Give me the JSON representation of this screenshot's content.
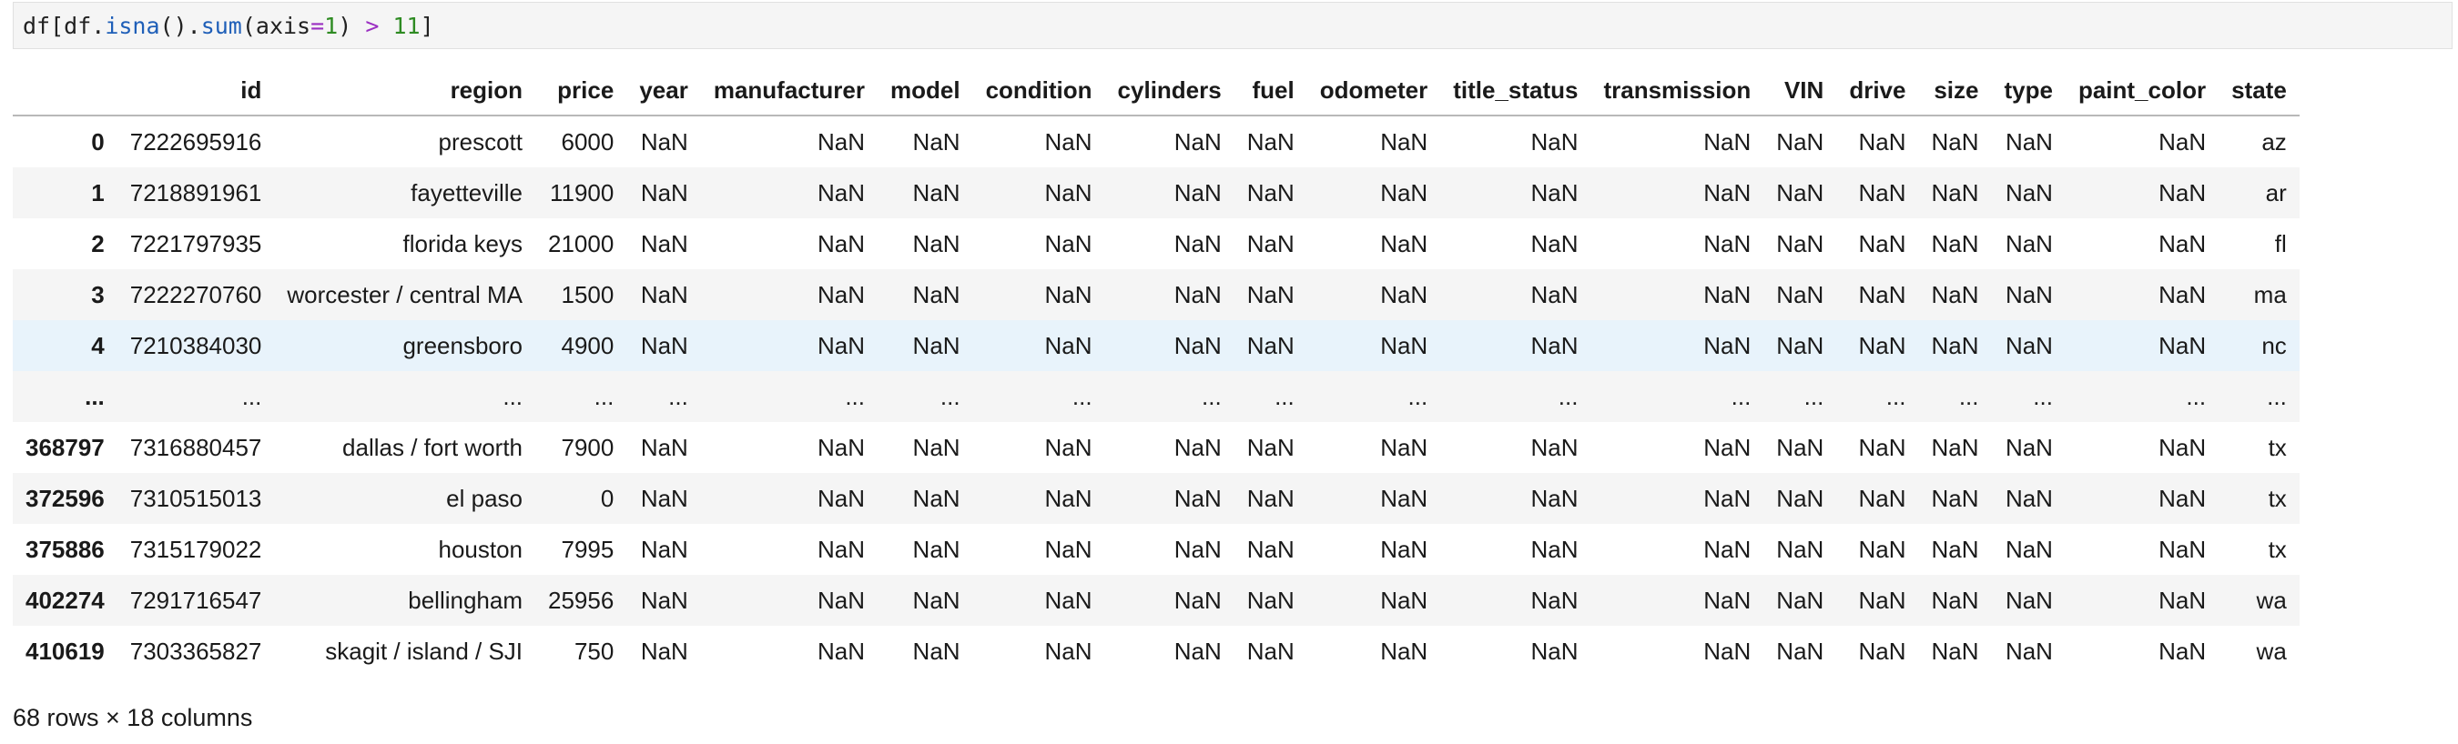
{
  "code_cell": {
    "tokens": [
      {
        "text": "df[df.",
        "cls": ""
      },
      {
        "text": "isna",
        "cls": "tok-fn"
      },
      {
        "text": "().",
        "cls": ""
      },
      {
        "text": "sum",
        "cls": "tok-fn"
      },
      {
        "text": "(axis",
        "cls": ""
      },
      {
        "text": "=",
        "cls": "tok-op"
      },
      {
        "text": "1",
        "cls": "tok-num"
      },
      {
        "text": ") ",
        "cls": ""
      },
      {
        "text": ">",
        "cls": "tok-op"
      },
      {
        "text": " ",
        "cls": ""
      },
      {
        "text": "11",
        "cls": "tok-num"
      },
      {
        "text": "]",
        "cls": ""
      }
    ]
  },
  "table": {
    "columns": [
      "",
      "id",
      "region",
      "price",
      "year",
      "manufacturer",
      "model",
      "condition",
      "cylinders",
      "fuel",
      "odometer",
      "title_status",
      "transmission",
      "VIN",
      "drive",
      "size",
      "type",
      "paint_color",
      "state"
    ],
    "rows": [
      {
        "index": "0",
        "cells": [
          "7222695916",
          "prescott",
          "6000",
          "NaN",
          "NaN",
          "NaN",
          "NaN",
          "NaN",
          "NaN",
          "NaN",
          "NaN",
          "NaN",
          "NaN",
          "NaN",
          "NaN",
          "NaN",
          "NaN",
          "az"
        ]
      },
      {
        "index": "1",
        "cells": [
          "7218891961",
          "fayetteville",
          "11900",
          "NaN",
          "NaN",
          "NaN",
          "NaN",
          "NaN",
          "NaN",
          "NaN",
          "NaN",
          "NaN",
          "NaN",
          "NaN",
          "NaN",
          "NaN",
          "NaN",
          "ar"
        ]
      },
      {
        "index": "2",
        "cells": [
          "7221797935",
          "florida keys",
          "21000",
          "NaN",
          "NaN",
          "NaN",
          "NaN",
          "NaN",
          "NaN",
          "NaN",
          "NaN",
          "NaN",
          "NaN",
          "NaN",
          "NaN",
          "NaN",
          "NaN",
          "fl"
        ]
      },
      {
        "index": "3",
        "cells": [
          "7222270760",
          "worcester / central MA",
          "1500",
          "NaN",
          "NaN",
          "NaN",
          "NaN",
          "NaN",
          "NaN",
          "NaN",
          "NaN",
          "NaN",
          "NaN",
          "NaN",
          "NaN",
          "NaN",
          "NaN",
          "ma"
        ]
      },
      {
        "index": "4",
        "cells": [
          "7210384030",
          "greensboro",
          "4900",
          "NaN",
          "NaN",
          "NaN",
          "NaN",
          "NaN",
          "NaN",
          "NaN",
          "NaN",
          "NaN",
          "NaN",
          "NaN",
          "NaN",
          "NaN",
          "NaN",
          "nc"
        ],
        "hovered": true
      },
      {
        "index": "...",
        "cells": [
          "...",
          "...",
          "...",
          "...",
          "...",
          "...",
          "...",
          "...",
          "...",
          "...",
          "...",
          "...",
          "...",
          "...",
          "...",
          "...",
          "...",
          "..."
        ]
      },
      {
        "index": "368797",
        "cells": [
          "7316880457",
          "dallas / fort worth",
          "7900",
          "NaN",
          "NaN",
          "NaN",
          "NaN",
          "NaN",
          "NaN",
          "NaN",
          "NaN",
          "NaN",
          "NaN",
          "NaN",
          "NaN",
          "NaN",
          "NaN",
          "tx"
        ]
      },
      {
        "index": "372596",
        "cells": [
          "7310515013",
          "el paso",
          "0",
          "NaN",
          "NaN",
          "NaN",
          "NaN",
          "NaN",
          "NaN",
          "NaN",
          "NaN",
          "NaN",
          "NaN",
          "NaN",
          "NaN",
          "NaN",
          "NaN",
          "tx"
        ]
      },
      {
        "index": "375886",
        "cells": [
          "7315179022",
          "houston",
          "7995",
          "NaN",
          "NaN",
          "NaN",
          "NaN",
          "NaN",
          "NaN",
          "NaN",
          "NaN",
          "NaN",
          "NaN",
          "NaN",
          "NaN",
          "NaN",
          "NaN",
          "tx"
        ]
      },
      {
        "index": "402274",
        "cells": [
          "7291716547",
          "bellingham",
          "25956",
          "NaN",
          "NaN",
          "NaN",
          "NaN",
          "NaN",
          "NaN",
          "NaN",
          "NaN",
          "NaN",
          "NaN",
          "NaN",
          "NaN",
          "NaN",
          "NaN",
          "wa"
        ]
      },
      {
        "index": "410619",
        "cells": [
          "7303365827",
          "skagit / island / SJI",
          "750",
          "NaN",
          "NaN",
          "NaN",
          "NaN",
          "NaN",
          "NaN",
          "NaN",
          "NaN",
          "NaN",
          "NaN",
          "NaN",
          "NaN",
          "NaN",
          "NaN",
          "wa"
        ]
      }
    ]
  },
  "footer": {
    "shape_text": "68 rows × 18 columns"
  }
}
